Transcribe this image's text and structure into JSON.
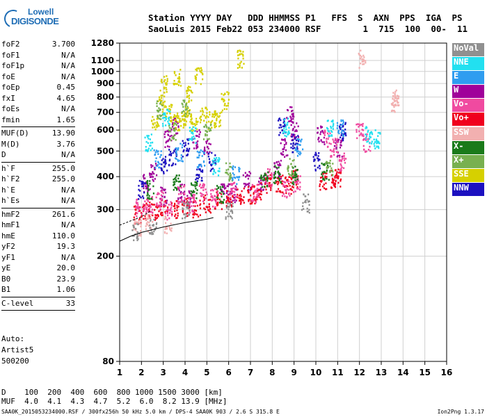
{
  "logo": {
    "line1": "Lowell",
    "line2": "DIGISONDE"
  },
  "header": {
    "line1": "Station YYYY DAY   DDD HHMMSS P1   FFS  S  AXN  PPS  IGA  PS",
    "line2": "SaoLuis 2015 Feb22 053 234000 RSF        1  715  100  00-  11"
  },
  "params": [
    {
      "k": "foF2",
      "v": "3.700"
    },
    {
      "k": "foF1",
      "v": "N/A"
    },
    {
      "k": "foF1p",
      "v": "N/A"
    },
    {
      "k": "foE",
      "v": "N/A"
    },
    {
      "k": "foEp",
      "v": "0.45"
    },
    {
      "k": "fxI",
      "v": "4.65"
    },
    {
      "k": "foEs",
      "v": "N/A"
    },
    {
      "k": "fmin",
      "v": "1.65"
    },
    {
      "sep": true
    },
    {
      "k": "MUF(D)",
      "v": "13.90"
    },
    {
      "k": "M(D)",
      "v": "3.76"
    },
    {
      "k": "D",
      "v": "N/A"
    },
    {
      "sep": true
    },
    {
      "k": "h`F",
      "v": "255.0"
    },
    {
      "k": "h`F2",
      "v": "255.0"
    },
    {
      "k": "h`E",
      "v": "N/A"
    },
    {
      "k": "h`Es",
      "v": "N/A"
    },
    {
      "sep": true
    },
    {
      "k": "hmF2",
      "v": "261.6"
    },
    {
      "k": "hmF1",
      "v": "N/A"
    },
    {
      "k": "hmE",
      "v": "110.0"
    },
    {
      "k": "yF2",
      "v": "19.3"
    },
    {
      "k": "yF1",
      "v": "N/A"
    },
    {
      "k": "yE",
      "v": "20.0"
    },
    {
      "k": "B0",
      "v": "23.9"
    },
    {
      "k": "B1",
      "v": "1.06"
    },
    {
      "sep": true
    },
    {
      "k": "C-level",
      "v": "33"
    },
    {
      "sep": true
    }
  ],
  "auto": {
    "line1": "Auto:",
    "line2": "Artist5",
    "line3": "500200"
  },
  "legend": [
    {
      "label": "NoVal",
      "color": "#909090"
    },
    {
      "label": "NNE",
      "color": "#22e0f0"
    },
    {
      "label": "E",
      "color": "#2f9df0"
    },
    {
      "label": "W",
      "color": "#a0009a"
    },
    {
      "label": "Vo-",
      "color": "#f04aa0"
    },
    {
      "label": "Vo+",
      "color": "#f0001e"
    },
    {
      "label": "SSW",
      "color": "#f2b0b0"
    },
    {
      "label": "X-",
      "color": "#1a7a1a"
    },
    {
      "label": "X+",
      "color": "#78b050"
    },
    {
      "label": "SSE",
      "color": "#d6d000"
    },
    {
      "label": "NNW",
      "color": "#1c10c0"
    }
  ],
  "dmuf": {
    "d_line": "D    100  200  400  600  800 1000 1500 3000 [km]",
    "muf_line": "MUF  4.0  4.1  4.3  4.7  5.2  6.0  8.2 13.9 [MHz]"
  },
  "footer": {
    "left": "SAA0K_2015053234000.RSF / 300fx256h 50 kHz 5.0 km / DPS-4 SAA0K 903 / 2.6 S 315.8 E",
    "right": "Ion2Png 1.3.17"
  },
  "chart_data": {
    "type": "scatter",
    "title": "",
    "xlabel": "",
    "ylabel": "",
    "xlim": [
      1,
      16
    ],
    "ylim": [
      80,
      1280
    ],
    "y_scale": "log",
    "x_ticks": [
      1,
      2,
      3,
      4,
      5,
      6,
      7,
      8,
      9,
      10,
      11,
      12,
      13,
      14,
      15,
      16
    ],
    "y_ticks": [
      80,
      200,
      300,
      400,
      500,
      600,
      700,
      800,
      900,
      1000,
      1100,
      1280
    ],
    "grid": true,
    "clusters": [
      {
        "name": "W",
        "color": "#a0009a",
        "pts": [
          [
            2.2,
            380
          ],
          [
            2.5,
            420
          ],
          [
            3.0,
            340
          ],
          [
            3.2,
            560
          ],
          [
            3.5,
            620
          ],
          [
            3.8,
            350
          ],
          [
            4.2,
            330
          ],
          [
            4.5,
            560
          ],
          [
            5.0,
            520
          ],
          [
            5.8,
            360
          ],
          [
            6.2,
            350
          ],
          [
            6.8,
            390
          ],
          [
            7.5,
            380
          ],
          [
            8.2,
            430
          ],
          [
            8.5,
            520
          ],
          [
            8.8,
            690
          ],
          [
            9.0,
            600
          ],
          [
            10.2,
            580
          ],
          [
            11.0,
            520
          ]
        ]
      },
      {
        "name": "Vo+",
        "color": "#f0001e",
        "pts": [
          [
            1.8,
            290
          ],
          [
            2.2,
            300
          ],
          [
            2.6,
            300
          ],
          [
            3.0,
            310
          ],
          [
            3.5,
            305
          ],
          [
            4.0,
            310
          ],
          [
            4.5,
            305
          ],
          [
            5.0,
            320
          ],
          [
            5.5,
            330
          ],
          [
            6.0,
            330
          ],
          [
            6.5,
            340
          ],
          [
            7.0,
            345
          ],
          [
            7.3,
            355
          ],
          [
            7.8,
            380
          ],
          [
            8.3,
            380
          ],
          [
            8.7,
            375
          ],
          [
            9.0,
            395
          ],
          [
            10.3,
            390
          ],
          [
            10.8,
            395
          ],
          [
            11.0,
            400
          ]
        ]
      },
      {
        "name": "Vo-",
        "color": "#f04aa0",
        "pts": [
          [
            1.9,
            310
          ],
          [
            2.3,
            320
          ],
          [
            2.8,
            330
          ],
          [
            3.2,
            300
          ],
          [
            3.8,
            345
          ],
          [
            4.3,
            320
          ],
          [
            4.8,
            350
          ],
          [
            5.3,
            335
          ],
          [
            6.2,
            355
          ],
          [
            7.2,
            350
          ],
          [
            7.8,
            400
          ],
          [
            8.6,
            360
          ],
          [
            9.1,
            380
          ],
          [
            10.5,
            560
          ],
          [
            10.8,
            520
          ],
          [
            11.2,
            460
          ],
          [
            12.0,
            600
          ],
          [
            12.3,
            540
          ]
        ]
      },
      {
        "name": "SSE",
        "color": "#d6d000",
        "pts": [
          [
            2.6,
            650
          ],
          [
            2.9,
            760
          ],
          [
            3.2,
            700
          ],
          [
            3.6,
            650
          ],
          [
            3.9,
            660
          ],
          [
            4.1,
            700
          ],
          [
            4.4,
            640
          ],
          [
            4.8,
            700
          ],
          [
            5.2,
            660
          ],
          [
            5.5,
            670
          ],
          [
            3.0,
            900
          ],
          [
            3.6,
            950
          ],
          [
            4.2,
            820
          ],
          [
            4.6,
            980
          ],
          [
            5.8,
            780
          ],
          [
            6.5,
            1120
          ]
        ]
      },
      {
        "name": "NNW",
        "color": "#1c10c0",
        "pts": [
          [
            2.0,
            360
          ],
          [
            3.0,
            450
          ],
          [
            3.4,
            480
          ],
          [
            4.0,
            520
          ],
          [
            4.6,
            420
          ],
          [
            5.2,
            460
          ],
          [
            8.4,
            620
          ],
          [
            9.0,
            540
          ],
          [
            10.0,
            460
          ],
          [
            11.2,
            600
          ]
        ]
      },
      {
        "name": "X-",
        "color": "#1a7a1a",
        "pts": [
          [
            2.4,
            360
          ],
          [
            3.6,
            380
          ],
          [
            4.4,
            360
          ],
          [
            5.6,
            345
          ],
          [
            7.6,
            395
          ],
          [
            8.2,
            410
          ],
          [
            9.0,
            410
          ],
          [
            10.4,
            420
          ]
        ]
      },
      {
        "name": "X+",
        "color": "#78b050",
        "pts": [
          [
            2.8,
            720
          ],
          [
            3.4,
            600
          ],
          [
            4.0,
            740
          ],
          [
            5.0,
            600
          ],
          [
            6.0,
            420
          ],
          [
            8.8,
            440
          ],
          [
            10.6,
            430
          ]
        ]
      },
      {
        "name": "NNE",
        "color": "#22e0f0",
        "pts": [
          [
            2.3,
            540
          ],
          [
            3.1,
            680
          ],
          [
            4.3,
            580
          ],
          [
            5.4,
            440
          ],
          [
            8.6,
            620
          ],
          [
            10.6,
            620
          ],
          [
            12.4,
            580
          ],
          [
            12.8,
            560
          ]
        ]
      },
      {
        "name": "E",
        "color": "#2f9df0",
        "pts": [
          [
            2.7,
            470
          ],
          [
            3.7,
            500
          ],
          [
            4.7,
            470
          ],
          [
            6.3,
            410
          ],
          [
            9.2,
            520
          ],
          [
            11.1,
            620
          ]
        ]
      },
      {
        "name": "SSW",
        "color": "#f2b0b0",
        "pts": [
          [
            1.8,
            260
          ],
          [
            2.3,
            270
          ],
          [
            3.2,
            265
          ],
          [
            13.6,
            760
          ],
          [
            13.6,
            800
          ],
          [
            12.1,
            1120
          ]
        ]
      },
      {
        "name": "NoVal",
        "color": "#909090",
        "pts": [
          [
            1.7,
            250
          ],
          [
            2.5,
            260
          ],
          [
            4.0,
            300
          ],
          [
            6.0,
            300
          ],
          [
            9.5,
            320
          ]
        ]
      }
    ],
    "trace": [
      [
        1.0,
        228
      ],
      [
        1.5,
        238
      ],
      [
        2.0,
        246
      ],
      [
        2.5,
        252
      ],
      [
        3.0,
        258
      ],
      [
        3.5,
        263
      ],
      [
        4.0,
        268
      ],
      [
        4.5,
        272
      ],
      [
        5.0,
        276
      ],
      [
        5.3,
        280
      ]
    ],
    "trace_upper": [
      [
        1.0,
        262
      ],
      [
        1.5,
        272
      ],
      [
        2.0,
        282
      ],
      [
        2.4,
        296
      ]
    ]
  }
}
